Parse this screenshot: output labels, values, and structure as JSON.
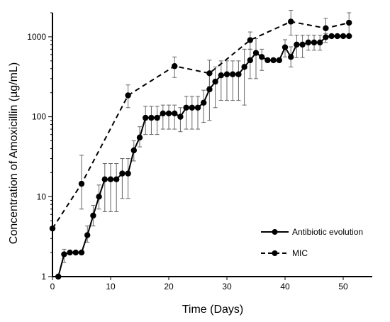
{
  "chart_data": {
    "type": "line",
    "title": "",
    "xlabel": "Time (Days)",
    "ylabel": "Concentration of Amoxicillin (µg/mL)",
    "xlim": [
      0,
      55
    ],
    "ylim": [
      1,
      2000
    ],
    "y_scale": "log",
    "grid": false,
    "legend_position": "bottom-right",
    "x_ticks": [
      0,
      10,
      20,
      30,
      40,
      50
    ],
    "x_tick_labels": [
      "0",
      "10",
      "20",
      "30",
      "40",
      "50"
    ],
    "y_ticks": [
      1,
      10,
      100,
      1000
    ],
    "y_tick_labels": [
      "1",
      "10",
      "100",
      "1000"
    ],
    "series": [
      {
        "name": "Antibiotic evolution",
        "line_style": "solid",
        "color": "#000000",
        "points": [
          {
            "x": 1,
            "y": 1
          },
          {
            "x": 2,
            "y": 1.9,
            "err_lo": 1.5,
            "err_hi": 2.2
          },
          {
            "x": 3,
            "y": 2
          },
          {
            "x": 4,
            "y": 2
          },
          {
            "x": 5,
            "y": 2
          },
          {
            "x": 6,
            "y": 3.3,
            "err_lo": 2.7,
            "err_hi": 4.3
          },
          {
            "x": 7,
            "y": 5.8,
            "err_lo": 4.3,
            "err_hi": 7.8
          },
          {
            "x": 8,
            "y": 10,
            "err_lo": 7,
            "err_hi": 14
          },
          {
            "x": 9,
            "y": 16.5,
            "err_lo": 6.5,
            "err_hi": 26
          },
          {
            "x": 10,
            "y": 16.5,
            "err_lo": 6.5,
            "err_hi": 26
          },
          {
            "x": 11,
            "y": 16.5,
            "err_lo": 6.5,
            "err_hi": 26
          },
          {
            "x": 12,
            "y": 19.5,
            "err_lo": 9.5,
            "err_hi": 30
          },
          {
            "x": 13,
            "y": 19.5,
            "err_lo": 9.5,
            "err_hi": 30
          },
          {
            "x": 14,
            "y": 38,
            "err_lo": 28,
            "err_hi": 50
          },
          {
            "x": 15,
            "y": 55,
            "err_lo": 42,
            "err_hi": 75
          },
          {
            "x": 16,
            "y": 97,
            "err_lo": 60,
            "err_hi": 135
          },
          {
            "x": 17,
            "y": 97,
            "err_lo": 60,
            "err_hi": 135
          },
          {
            "x": 18,
            "y": 97,
            "err_lo": 60,
            "err_hi": 135
          },
          {
            "x": 19,
            "y": 110,
            "err_lo": 70,
            "err_hi": 140
          },
          {
            "x": 20,
            "y": 110,
            "err_lo": 70,
            "err_hi": 140
          },
          {
            "x": 21,
            "y": 110,
            "err_lo": 70,
            "err_hi": 140
          },
          {
            "x": 22,
            "y": 100,
            "err_lo": 65,
            "err_hi": 130
          },
          {
            "x": 23,
            "y": 130,
            "err_lo": 70,
            "err_hi": 180
          },
          {
            "x": 24,
            "y": 130,
            "err_lo": 70,
            "err_hi": 180
          },
          {
            "x": 25,
            "y": 130,
            "err_lo": 70,
            "err_hi": 180
          },
          {
            "x": 26,
            "y": 150,
            "err_lo": 85,
            "err_hi": 215
          },
          {
            "x": 27,
            "y": 220,
            "err_lo": 90,
            "err_hi": 340
          },
          {
            "x": 28,
            "y": 275,
            "err_lo": 130,
            "err_hi": 420
          },
          {
            "x": 29,
            "y": 330,
            "err_lo": 160,
            "err_hi": 500
          },
          {
            "x": 30,
            "y": 340,
            "err_lo": 160,
            "err_hi": 500
          },
          {
            "x": 31,
            "y": 340,
            "err_lo": 160,
            "err_hi": 500
          },
          {
            "x": 32,
            "y": 340,
            "err_lo": 160,
            "err_hi": 500
          },
          {
            "x": 33,
            "y": 420,
            "err_lo": 140,
            "err_hi": 700
          },
          {
            "x": 34,
            "y": 510,
            "err_lo": 300,
            "err_hi": 700
          },
          {
            "x": 35,
            "y": 630,
            "err_lo": 300,
            "err_hi": 950
          },
          {
            "x": 36,
            "y": 560,
            "err_lo": 380,
            "err_hi": 700
          },
          {
            "x": 37,
            "y": 510
          },
          {
            "x": 38,
            "y": 510
          },
          {
            "x": 39,
            "y": 510
          },
          {
            "x": 40,
            "y": 740,
            "err_lo": 560,
            "err_hi": 920
          },
          {
            "x": 41,
            "y": 560,
            "err_lo": 420,
            "err_hi": 750
          },
          {
            "x": 42,
            "y": 800,
            "err_lo": 550,
            "err_hi": 1050
          },
          {
            "x": 43,
            "y": 800,
            "err_lo": 550,
            "err_hi": 1050
          },
          {
            "x": 44,
            "y": 850,
            "err_lo": 680,
            "err_hi": 1050
          },
          {
            "x": 45,
            "y": 850,
            "err_lo": 680,
            "err_hi": 1050
          },
          {
            "x": 46,
            "y": 850,
            "err_lo": 680,
            "err_hi": 1050
          },
          {
            "x": 47,
            "y": 990,
            "err_lo": 850,
            "err_hi": 1100
          },
          {
            "x": 48,
            "y": 1020
          },
          {
            "x": 49,
            "y": 1020
          },
          {
            "x": 50,
            "y": 1020
          },
          {
            "x": 51,
            "y": 1020
          }
        ]
      },
      {
        "name": "MIC",
        "line_style": "dashed",
        "color": "#000000",
        "points": [
          {
            "x": 0,
            "y": 4
          },
          {
            "x": 5,
            "y": 14.5,
            "err_lo": 7,
            "err_hi": 33
          },
          {
            "x": 13,
            "y": 185,
            "err_lo": 130,
            "err_hi": 250
          },
          {
            "x": 21,
            "y": 430,
            "err_lo": 310,
            "err_hi": 560
          },
          {
            "x": 27,
            "y": 350,
            "err_lo": 240,
            "err_hi": 510
          },
          {
            "x": 34,
            "y": 910,
            "err_lo": 700,
            "err_hi": 1150
          },
          {
            "x": 41,
            "y": 1550,
            "err_lo": 1050,
            "err_hi": 2150
          },
          {
            "x": 47,
            "y": 1280,
            "err_lo": 1000,
            "err_hi": 1700
          },
          {
            "x": 51,
            "y": 1500,
            "err_lo": 1000,
            "err_hi": 2000
          }
        ]
      }
    ]
  }
}
